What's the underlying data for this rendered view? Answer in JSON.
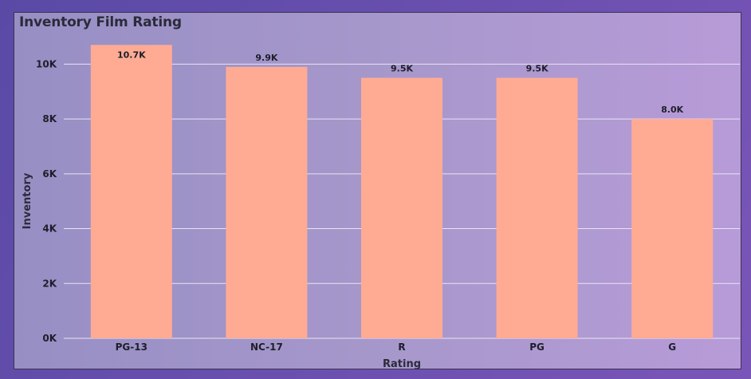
{
  "chart_data": {
    "type": "bar",
    "title": "Inventory Film Rating",
    "xlabel": "Rating",
    "ylabel": "Inventory",
    "categories": [
      "PG-13",
      "NC-17",
      "R",
      "PG",
      "G"
    ],
    "values": [
      10700,
      9900,
      9500,
      9500,
      8000
    ],
    "data_labels": [
      "10.7K",
      "9.9K",
      "9.5K",
      "9.5K",
      "8.0K"
    ],
    "ylim": [
      0,
      11000
    ],
    "yticks": [
      0,
      2000,
      4000,
      6000,
      8000,
      10000
    ],
    "ytick_labels": [
      "0K",
      "2K",
      "4K",
      "6K",
      "8K",
      "10K"
    ],
    "grid": true,
    "bar_color": "#ffab94",
    "grid_color": "#e8e4f4"
  }
}
